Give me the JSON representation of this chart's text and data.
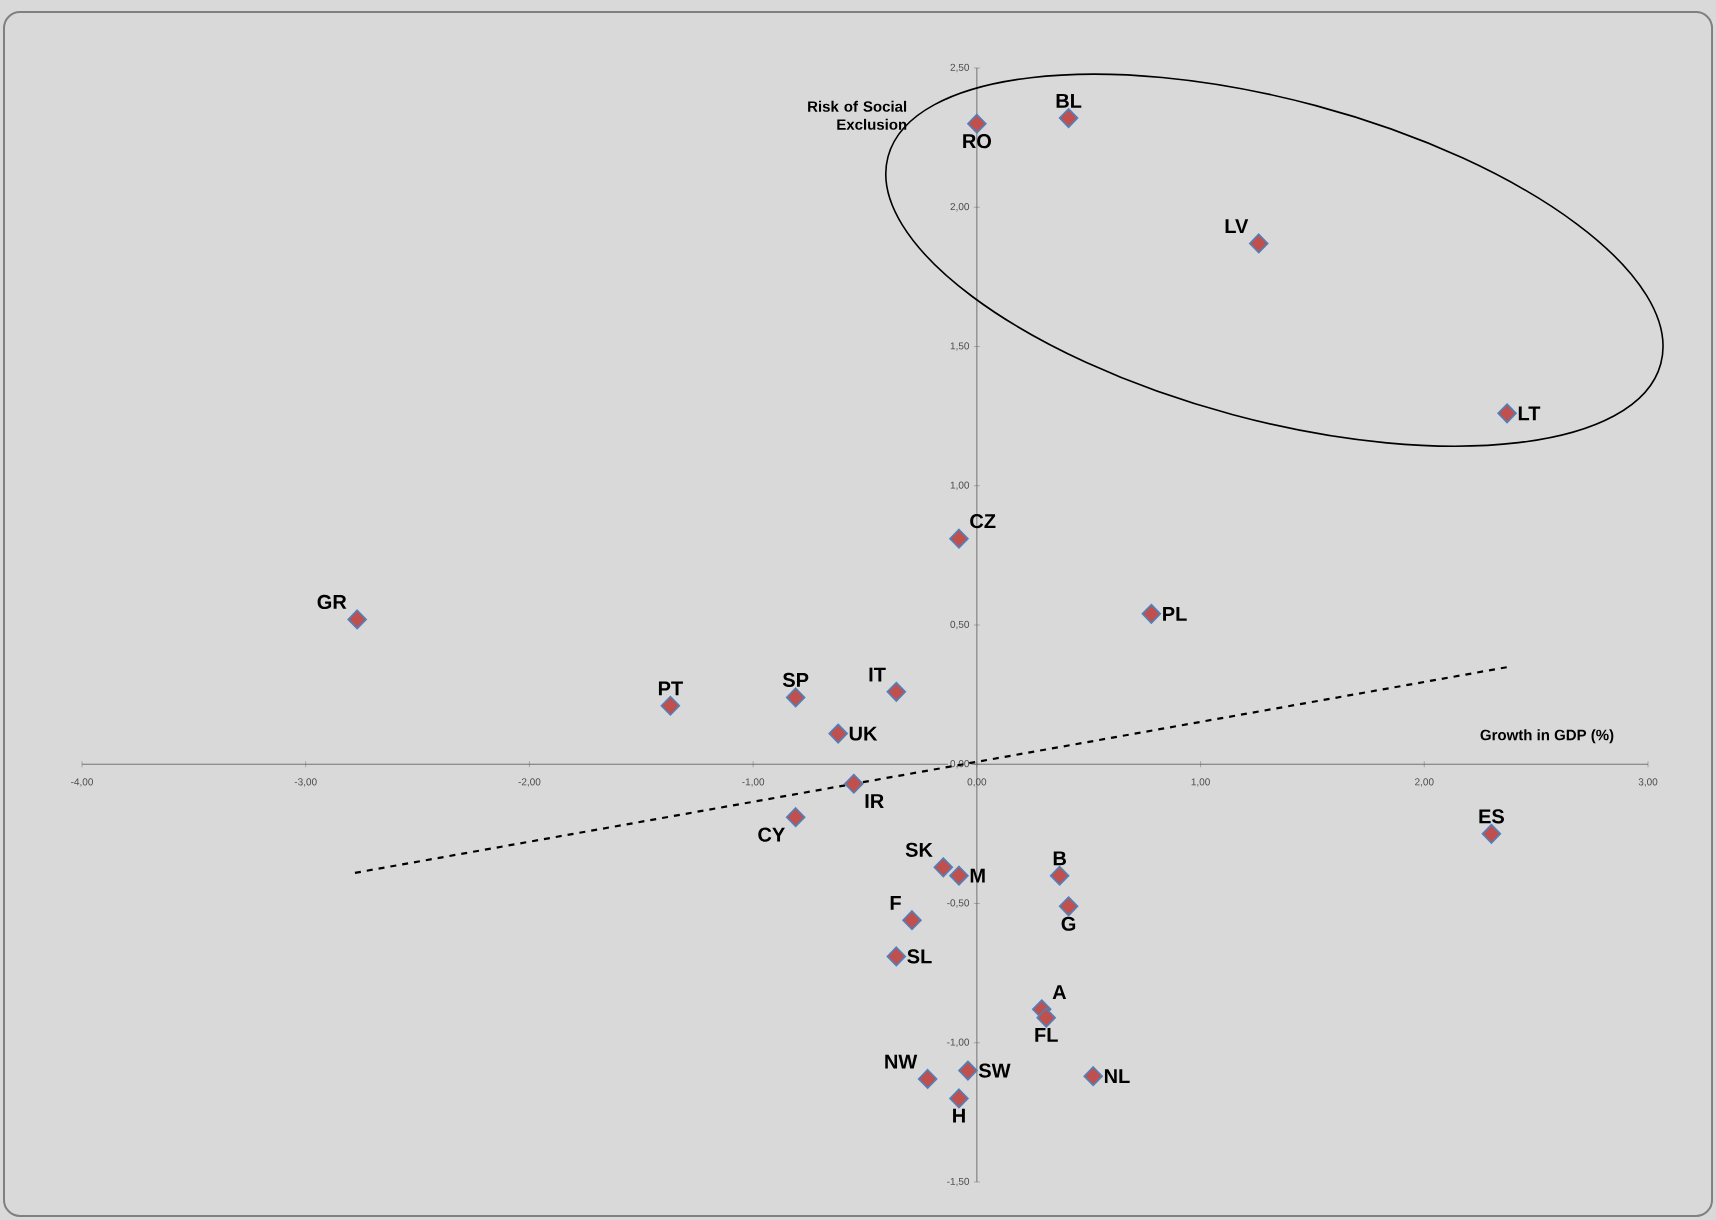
{
  "chart_data": {
    "type": "scatter",
    "xlabel": "Growth in GDP (%)",
    "annotations": [
      "Risk of Social Exclusion"
    ],
    "marker": "diamond",
    "grid": false,
    "xlim": [
      -4,
      3
    ],
    "ylim": [
      -1.5,
      2.5
    ],
    "xticks": [
      {
        "value": -4,
        "label": "-4,00"
      },
      {
        "value": -3,
        "label": "-3,00"
      },
      {
        "value": -2,
        "label": "-2,00"
      },
      {
        "value": -1,
        "label": "-1,00"
      },
      {
        "value": 0,
        "label": "0,00"
      },
      {
        "value": 1,
        "label": "1,00"
      },
      {
        "value": 2,
        "label": "2,00"
      },
      {
        "value": 3,
        "label": "3,00"
      }
    ],
    "yticks": [
      {
        "value": -1.5,
        "label": "-1,50"
      },
      {
        "value": -1,
        "label": "-1,00"
      },
      {
        "value": -0.5,
        "label": "-0,50"
      },
      {
        "value": 0,
        "label": "0,00"
      },
      {
        "value": 0.5,
        "label": "0,50"
      },
      {
        "value": 1,
        "label": "1,00"
      },
      {
        "value": 1.5,
        "label": "1,50"
      },
      {
        "value": 2,
        "label": "2,00"
      },
      {
        "value": 2.5,
        "label": "2,50"
      }
    ],
    "series": [
      {
        "name": "RO",
        "color": "#c0504d",
        "x": [
          0.0
        ],
        "values": [
          2.3
        ]
      },
      {
        "name": "BL",
        "color": "#c0504d",
        "x": [
          0.41
        ],
        "values": [
          2.32
        ]
      },
      {
        "name": "LV",
        "color": "#c0504d",
        "x": [
          1.26
        ],
        "values": [
          1.87
        ]
      },
      {
        "name": "LT",
        "color": "#c0504d",
        "x": [
          2.37
        ],
        "values": [
          1.26
        ]
      },
      {
        "name": "CZ",
        "color": "#c0504d",
        "x": [
          -0.08
        ],
        "values": [
          0.81
        ]
      },
      {
        "name": "PL",
        "color": "#c0504d",
        "x": [
          0.78
        ],
        "values": [
          0.54
        ]
      },
      {
        "name": "GR",
        "color": "#c0504d",
        "x": [
          -2.77
        ],
        "values": [
          0.52
        ]
      },
      {
        "name": "PT",
        "color": "#c0504d",
        "x": [
          -1.37
        ],
        "values": [
          0.21
        ]
      },
      {
        "name": "SP",
        "color": "#c0504d",
        "x": [
          -0.81
        ],
        "values": [
          0.24
        ]
      },
      {
        "name": "IT",
        "color": "#c0504d",
        "x": [
          -0.36
        ],
        "values": [
          0.26
        ]
      },
      {
        "name": "UK",
        "color": "#c0504d",
        "x": [
          -0.62
        ],
        "values": [
          0.11
        ]
      },
      {
        "name": "IR",
        "color": "#c0504d",
        "x": [
          -0.55
        ],
        "values": [
          -0.07
        ]
      },
      {
        "name": "CY",
        "color": "#c0504d",
        "x": [
          -0.81
        ],
        "values": [
          -0.19
        ]
      },
      {
        "name": "ES",
        "color": "#c0504d",
        "x": [
          2.3
        ],
        "values": [
          -0.25
        ]
      },
      {
        "name": "SK",
        "color": "#c0504d",
        "x": [
          -0.15
        ],
        "values": [
          -0.37
        ]
      },
      {
        "name": "M",
        "color": "#c0504d",
        "x": [
          -0.08
        ],
        "values": [
          -0.4
        ]
      },
      {
        "name": "B",
        "color": "#c0504d",
        "x": [
          0.37
        ],
        "values": [
          -0.4
        ]
      },
      {
        "name": "G",
        "color": "#c0504d",
        "x": [
          0.41
        ],
        "values": [
          -0.51
        ]
      },
      {
        "name": "F",
        "color": "#c0504d",
        "x": [
          -0.29
        ],
        "values": [
          -0.56
        ]
      },
      {
        "name": "SL",
        "color": "#c0504d",
        "x": [
          -0.36
        ],
        "values": [
          -0.69
        ]
      },
      {
        "name": "A",
        "color": "#c0504d",
        "x": [
          0.29
        ],
        "values": [
          -0.88
        ]
      },
      {
        "name": "FL",
        "color": "#c0504d",
        "x": [
          0.31
        ],
        "values": [
          -0.91
        ]
      },
      {
        "name": "NW",
        "color": "#c0504d",
        "x": [
          -0.22
        ],
        "values": [
          -1.13
        ]
      },
      {
        "name": "SW",
        "color": "#c0504d",
        "x": [
          -0.04
        ],
        "values": [
          -1.1
        ]
      },
      {
        "name": "H",
        "color": "#c0504d",
        "x": [
          -0.08
        ],
        "values": [
          -1.2
        ]
      },
      {
        "name": "NL",
        "color": "#c0504d",
        "x": [
          0.52
        ],
        "values": [
          -1.12
        ]
      },
      {
        "type": "line",
        "color": "#000000",
        "line_style": "dashed",
        "marker": "none",
        "x": [
          -2.78,
          2.38
        ],
        "values": [
          -0.39,
          0.35
        ]
      }
    ]
  }
}
